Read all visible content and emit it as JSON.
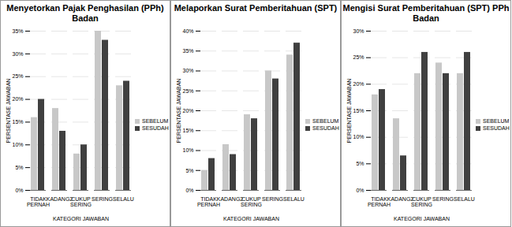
{
  "chart_data": [
    {
      "type": "bar",
      "title": "Menyetorkan Pajak Penghasilan (PPh) Badan",
      "categories": [
        "TIDAK PERNAH",
        "KADANG2",
        "CUKUP SERING",
        "SERING",
        "SELALU"
      ],
      "series": [
        {
          "name": "SEBELUM",
          "color": "#c8c8c8",
          "values": [
            16,
            18,
            8,
            35,
            23
          ]
        },
        {
          "name": "SESUDAH",
          "color": "#404040",
          "values": [
            20,
            13,
            10,
            33,
            24
          ]
        }
      ],
      "x_label": "KATEGORI JAWABAN",
      "y_label": "PERSENTASE JAWABAN",
      "ylim": [
        0,
        35
      ],
      "yticks": [
        {
          "value": 0,
          "label": "0%"
        },
        {
          "value": 5,
          "label": "5%"
        },
        {
          "value": 10,
          "label": "10%"
        },
        {
          "value": 15,
          "label": "15%"
        },
        {
          "value": 20,
          "label": "20%"
        },
        {
          "value": 25,
          "label": "25%"
        },
        {
          "value": 30,
          "label": "30%"
        },
        {
          "value": 35,
          "label": "35%"
        }
      ],
      "grid": true,
      "legend": "right"
    },
    {
      "type": "bar",
      "title": "Melaporkan Surat Pemberitahuan (SPT)",
      "categories": [
        "TIDAK PERNAH",
        "KADANG2",
        "CUKUP SERING",
        "SERING",
        "SELALU"
      ],
      "series": [
        {
          "name": "SEBELUM",
          "color": "#c8c8c8",
          "values": [
            5,
            11.5,
            19,
            30,
            34
          ]
        },
        {
          "name": "SESUDAH",
          "color": "#404040",
          "values": [
            8,
            9,
            18,
            28,
            37
          ]
        }
      ],
      "x_label": "KATEGORI JAWABAN",
      "y_label": "PERSENTASE JAWABAN",
      "ylim": [
        0,
        40
      ],
      "yticks": [
        {
          "value": 0,
          "label": "0%"
        },
        {
          "value": 5,
          "label": "5%"
        },
        {
          "value": 10,
          "label": "10%"
        },
        {
          "value": 15,
          "label": "15%"
        },
        {
          "value": 20,
          "label": "20%"
        },
        {
          "value": 25,
          "label": "25%"
        },
        {
          "value": 30,
          "label": "30%"
        },
        {
          "value": 35,
          "label": "35%"
        },
        {
          "value": 40,
          "label": "40%"
        }
      ],
      "grid": true,
      "legend": "right"
    },
    {
      "type": "bar",
      "title": "Mengisi Surat Pemberitahuan (SPT) PPh Badan",
      "categories": [
        "TIDAK PERNAH",
        "KADANG2",
        "CUKUP SERING",
        "SERING",
        "SELALU"
      ],
      "series": [
        {
          "name": "SEBELUM",
          "color": "#c8c8c8",
          "values": [
            18,
            13.5,
            22,
            24,
            22
          ]
        },
        {
          "name": "SESUDAH",
          "color": "#404040",
          "values": [
            19,
            6.5,
            26,
            22,
            26
          ]
        }
      ],
      "x_label": "KATEGORI JAWABAN",
      "y_label": "PERSENTASE JAWABAN",
      "ylim": [
        0,
        30
      ],
      "yticks": [
        {
          "value": 0,
          "label": "0%"
        },
        {
          "value": 5,
          "label": "5%"
        },
        {
          "value": 10,
          "label": "10%"
        },
        {
          "value": 15,
          "label": "15%"
        },
        {
          "value": 20,
          "label": "20%"
        },
        {
          "value": 25,
          "label": "25%"
        },
        {
          "value": 30,
          "label": "30%"
        }
      ],
      "grid": true,
      "legend": "right"
    }
  ]
}
